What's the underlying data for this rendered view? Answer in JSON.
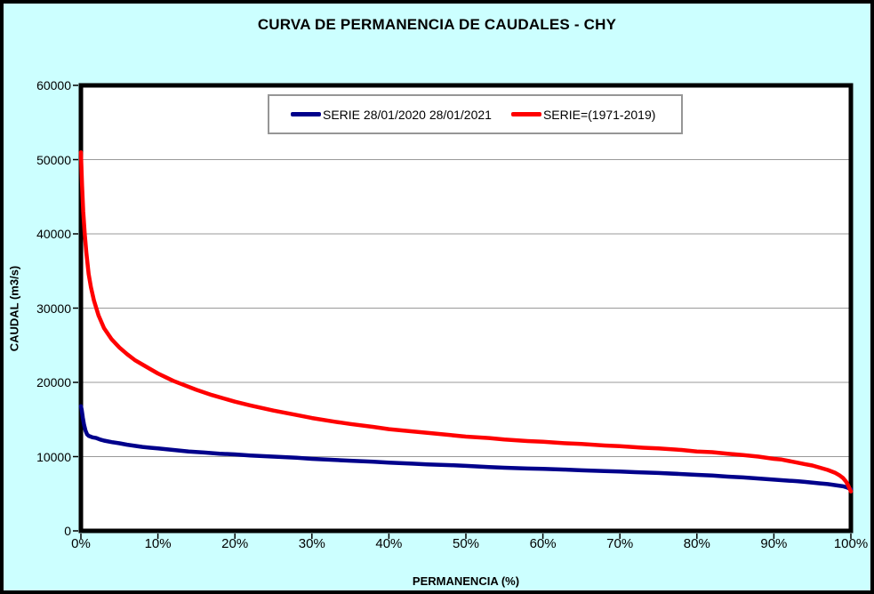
{
  "title": "CURVA DE PERMANENCIA DE CAUDALES - CHY",
  "colors": {
    "background": "#CCFFFF",
    "plot_background": "#FFFFFF",
    "plot_border": "#000000",
    "gridline": "#999999",
    "legend_border": "#969696",
    "series_blue": "#00008B",
    "series_red": "#FF0000"
  },
  "chart_data": {
    "type": "line",
    "title": "CURVA DE PERMANENCIA DE CAUDALES - CHY",
    "xlabel": "PERMANENCIA (%)",
    "ylabel": "CAUDAL (m3/s)",
    "xlim": [
      0,
      100
    ],
    "ylim": [
      0,
      60000
    ],
    "grid": "horizontal-only",
    "legend_position": "top-center-inside",
    "x_ticks": [
      {
        "value": 0,
        "label": "0%"
      },
      {
        "value": 10,
        "label": "10%"
      },
      {
        "value": 20,
        "label": "20%"
      },
      {
        "value": 30,
        "label": "30%"
      },
      {
        "value": 40,
        "label": "40%"
      },
      {
        "value": 50,
        "label": "50%"
      },
      {
        "value": 60,
        "label": "60%"
      },
      {
        "value": 70,
        "label": "70%"
      },
      {
        "value": 80,
        "label": "80%"
      },
      {
        "value": 90,
        "label": "90%"
      },
      {
        "value": 100,
        "label": "100%"
      }
    ],
    "y_ticks": [
      {
        "value": 0,
        "label": "0"
      },
      {
        "value": 10000,
        "label": "10000"
      },
      {
        "value": 20000,
        "label": "20000"
      },
      {
        "value": 30000,
        "label": "30000"
      },
      {
        "value": 40000,
        "label": "40000"
      },
      {
        "value": 50000,
        "label": "50000"
      },
      {
        "value": 60000,
        "label": "60000"
      }
    ],
    "series": [
      {
        "name": "SERIE 28/01/2020 28/01/2021",
        "color": "#00008B",
        "points": [
          [
            0,
            16800
          ],
          [
            0.1,
            16300
          ],
          [
            0.25,
            15200
          ],
          [
            0.4,
            14300
          ],
          [
            0.6,
            13500
          ],
          [
            0.8,
            13000
          ],
          [
            1,
            12800
          ],
          [
            1.5,
            12600
          ],
          [
            2,
            12500
          ],
          [
            2.5,
            12300
          ],
          [
            3,
            12150
          ],
          [
            4,
            11950
          ],
          [
            5,
            11800
          ],
          [
            6,
            11600
          ],
          [
            7,
            11450
          ],
          [
            8,
            11300
          ],
          [
            9,
            11200
          ],
          [
            10,
            11100
          ],
          [
            12,
            10900
          ],
          [
            14,
            10700
          ],
          [
            16,
            10550
          ],
          [
            18,
            10400
          ],
          [
            20,
            10300
          ],
          [
            22,
            10150
          ],
          [
            25,
            10000
          ],
          [
            28,
            9850
          ],
          [
            30,
            9700
          ],
          [
            33,
            9550
          ],
          [
            35,
            9450
          ],
          [
            38,
            9300
          ],
          [
            40,
            9200
          ],
          [
            43,
            9050
          ],
          [
            45,
            8950
          ],
          [
            48,
            8850
          ],
          [
            50,
            8750
          ],
          [
            53,
            8600
          ],
          [
            55,
            8500
          ],
          [
            58,
            8400
          ],
          [
            60,
            8350
          ],
          [
            63,
            8250
          ],
          [
            65,
            8150
          ],
          [
            68,
            8050
          ],
          [
            70,
            8000
          ],
          [
            72,
            7900
          ],
          [
            75,
            7800
          ],
          [
            78,
            7650
          ],
          [
            80,
            7550
          ],
          [
            82,
            7450
          ],
          [
            84,
            7300
          ],
          [
            86,
            7200
          ],
          [
            88,
            7050
          ],
          [
            90,
            6900
          ],
          [
            92,
            6750
          ],
          [
            93,
            6700
          ],
          [
            94,
            6600
          ],
          [
            95,
            6500
          ],
          [
            96,
            6400
          ],
          [
            97,
            6300
          ],
          [
            98,
            6150
          ],
          [
            99,
            6000
          ],
          [
            99.5,
            5850
          ],
          [
            100,
            5600
          ]
        ]
      },
      {
        "name": "SERIE=(1971-2019)",
        "color": "#FF0000",
        "points": [
          [
            0,
            51000
          ],
          [
            0.15,
            46500
          ],
          [
            0.3,
            43000
          ],
          [
            0.5,
            40000
          ],
          [
            0.7,
            37500
          ],
          [
            1,
            34600
          ],
          [
            1.3,
            32800
          ],
          [
            1.7,
            31000
          ],
          [
            2.3,
            29000
          ],
          [
            3,
            27300
          ],
          [
            4,
            25800
          ],
          [
            5,
            24700
          ],
          [
            6,
            23800
          ],
          [
            7,
            23000
          ],
          [
            8,
            22400
          ],
          [
            9,
            21800
          ],
          [
            10,
            21200
          ],
          [
            11,
            20700
          ],
          [
            12,
            20200
          ],
          [
            13,
            19800
          ],
          [
            15,
            19000
          ],
          [
            17,
            18300
          ],
          [
            20,
            17400
          ],
          [
            22,
            16900
          ],
          [
            25,
            16200
          ],
          [
            28,
            15600
          ],
          [
            30,
            15200
          ],
          [
            33,
            14700
          ],
          [
            35,
            14400
          ],
          [
            38,
            14000
          ],
          [
            40,
            13700
          ],
          [
            43,
            13400
          ],
          [
            45,
            13200
          ],
          [
            48,
            12900
          ],
          [
            50,
            12700
          ],
          [
            53,
            12500
          ],
          [
            55,
            12300
          ],
          [
            58,
            12100
          ],
          [
            60,
            12000
          ],
          [
            63,
            11800
          ],
          [
            65,
            11700
          ],
          [
            68,
            11500
          ],
          [
            70,
            11400
          ],
          [
            73,
            11200
          ],
          [
            75,
            11100
          ],
          [
            78,
            10900
          ],
          [
            80,
            10700
          ],
          [
            82,
            10600
          ],
          [
            84,
            10400
          ],
          [
            86,
            10200
          ],
          [
            88,
            10000
          ],
          [
            90,
            9700
          ],
          [
            91,
            9600
          ],
          [
            92,
            9400
          ],
          [
            93,
            9200
          ],
          [
            94,
            9000
          ],
          [
            95,
            8800
          ],
          [
            96,
            8500
          ],
          [
            97,
            8200
          ],
          [
            98,
            7800
          ],
          [
            98.5,
            7500
          ],
          [
            99,
            7100
          ],
          [
            99.4,
            6600
          ],
          [
            99.7,
            6000
          ],
          [
            100,
            5300
          ]
        ]
      }
    ]
  }
}
